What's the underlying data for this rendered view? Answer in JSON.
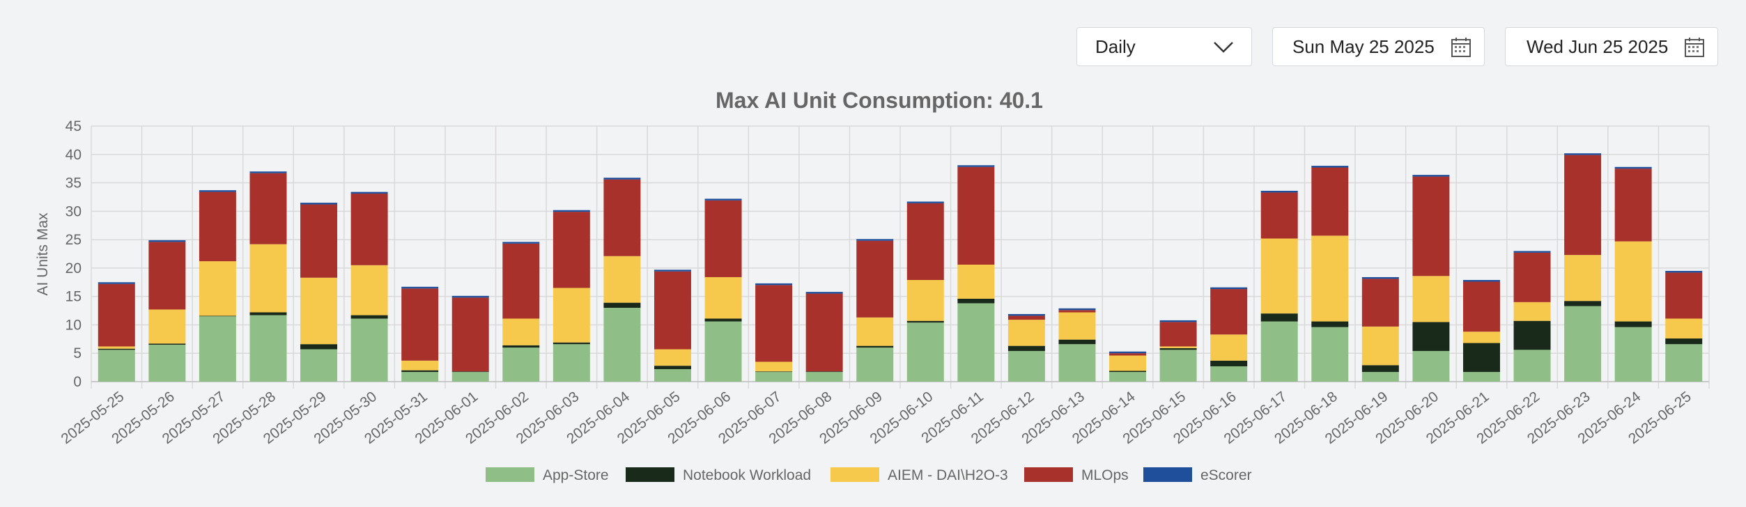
{
  "controls": {
    "period": "Daily",
    "start_date": "Sun May 25 2025",
    "end_date": "Wed Jun 25 2025"
  },
  "chart_data": {
    "type": "bar",
    "stacked": true,
    "title": "Max AI Unit Consumption: 40.1",
    "xlabel": "",
    "ylabel": "AI Units Max",
    "ylim": [
      0,
      45
    ],
    "yticks": [
      0,
      5,
      10,
      15,
      20,
      25,
      30,
      35,
      40,
      45
    ],
    "grid": true,
    "legend_position": "bottom",
    "categories": [
      "2025-05-25",
      "2025-05-26",
      "2025-05-27",
      "2025-05-28",
      "2025-05-29",
      "2025-05-30",
      "2025-05-31",
      "2025-06-01",
      "2025-06-02",
      "2025-06-03",
      "2025-06-04",
      "2025-06-05",
      "2025-06-06",
      "2025-06-07",
      "2025-06-08",
      "2025-06-09",
      "2025-06-10",
      "2025-06-11",
      "2025-06-12",
      "2025-06-13",
      "2025-06-14",
      "2025-06-15",
      "2025-06-16",
      "2025-06-17",
      "2025-06-18",
      "2025-06-19",
      "2025-06-20",
      "2025-06-21",
      "2025-06-22",
      "2025-06-23",
      "2025-06-24",
      "2025-06-25"
    ],
    "series": [
      {
        "name": "App-Store",
        "color": "#8fbf86",
        "values": [
          5.6,
          6.5,
          11.5,
          11.7,
          5.7,
          11.1,
          1.7,
          1.7,
          6.0,
          6.6,
          13.0,
          2.2,
          10.6,
          1.7,
          1.7,
          6.0,
          10.4,
          13.8,
          5.4,
          6.6,
          1.7,
          5.6,
          2.7,
          10.6,
          9.6,
          1.7,
          5.4,
          1.7,
          5.6,
          13.3,
          9.6,
          6.6
        ]
      },
      {
        "name": "Notebook Workload",
        "color": "#1a2a1a",
        "values": [
          0.2,
          0.2,
          0.1,
          0.5,
          0.9,
          0.6,
          0.3,
          0.1,
          0.4,
          0.3,
          0.9,
          0.6,
          0.5,
          0.1,
          0.1,
          0.3,
          0.3,
          0.8,
          0.9,
          0.8,
          0.2,
          0.3,
          1.0,
          1.4,
          1.0,
          1.2,
          5.1,
          5.1,
          5.1,
          0.9,
          1.0,
          1.0
        ]
      },
      {
        "name": "AIEM - DAI\\H2O-3",
        "color": "#f6c84b",
        "values": [
          0.4,
          6.0,
          9.6,
          12.0,
          11.7,
          8.8,
          1.7,
          0.0,
          4.7,
          9.6,
          8.2,
          2.9,
          7.3,
          1.7,
          0.0,
          5.0,
          7.2,
          6.0,
          4.6,
          4.8,
          2.7,
          0.3,
          4.6,
          13.2,
          15.1,
          6.8,
          8.1,
          2.0,
          3.3,
          8.1,
          14.1,
          3.5
        ]
      },
      {
        "name": "MLOps",
        "color": "#a8312b",
        "values": [
          11.0,
          11.9,
          12.2,
          12.5,
          12.9,
          12.6,
          12.7,
          13.0,
          13.2,
          13.4,
          13.5,
          13.7,
          13.5,
          13.5,
          13.7,
          13.5,
          13.5,
          17.2,
          0.7,
          0.4,
          0.4,
          4.3,
          8.0,
          8.1,
          12.0,
          8.4,
          17.5,
          8.8,
          8.7,
          17.6,
          12.8,
          8.1
        ]
      },
      {
        "name": "eScorer",
        "color": "#1f4e9a",
        "values": [
          0.3,
          0.3,
          0.3,
          0.3,
          0.3,
          0.3,
          0.3,
          0.3,
          0.3,
          0.3,
          0.3,
          0.3,
          0.3,
          0.3,
          0.3,
          0.3,
          0.3,
          0.3,
          0.3,
          0.3,
          0.3,
          0.3,
          0.3,
          0.3,
          0.3,
          0.3,
          0.3,
          0.3,
          0.3,
          0.3,
          0.3,
          0.3
        ]
      }
    ]
  }
}
